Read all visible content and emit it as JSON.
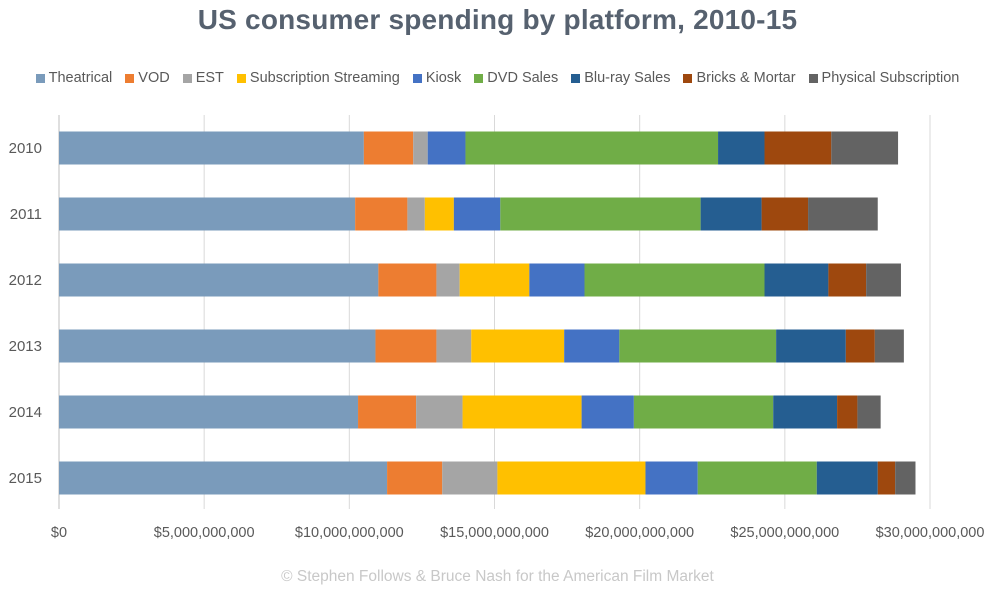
{
  "chart_data": {
    "type": "bar",
    "orientation": "horizontal",
    "stacked": true,
    "title": "US consumer spending by platform, 2010-15",
    "categories": [
      "2010",
      "2011",
      "2012",
      "2013",
      "2014",
      "2015"
    ],
    "xlim": [
      0,
      30000000000
    ],
    "x_ticks": [
      0,
      5000000000,
      10000000000,
      15000000000,
      20000000000,
      25000000000,
      30000000000
    ],
    "x_tick_labels": [
      "$0",
      "$5,000,000,000",
      "$10,000,000,000",
      "$15,000,000,000",
      "$20,000,000,000",
      "$25,000,000,000",
      "$30,000,000,000"
    ],
    "grid": true,
    "legend_position": "top",
    "series": [
      {
        "name": "Theatrical",
        "color": "#7a9bbb",
        "values": [
          10500000000,
          10200000000,
          11000000000,
          10900000000,
          10300000000,
          11300000000
        ]
      },
      {
        "name": "VOD",
        "color": "#ed7d31",
        "values": [
          1700000000,
          1800000000,
          2000000000,
          2100000000,
          2000000000,
          1900000000
        ]
      },
      {
        "name": "EST",
        "color": "#a5a5a5",
        "values": [
          500000000,
          600000000,
          800000000,
          1200000000,
          1600000000,
          1900000000
        ]
      },
      {
        "name": "Subscription Streaming",
        "color": "#ffc000",
        "values": [
          0,
          1000000000,
          2400000000,
          3200000000,
          4100000000,
          5100000000
        ]
      },
      {
        "name": "Kiosk",
        "color": "#4472c4",
        "values": [
          1300000000,
          1600000000,
          1900000000,
          1900000000,
          1800000000,
          1800000000
        ]
      },
      {
        "name": "DVD Sales",
        "color": "#70ad47",
        "values": [
          8700000000,
          6900000000,
          6200000000,
          5400000000,
          4800000000,
          4100000000
        ]
      },
      {
        "name": "Blu-ray Sales",
        "color": "#255e91",
        "values": [
          1600000000,
          2100000000,
          2200000000,
          2400000000,
          2200000000,
          2100000000
        ]
      },
      {
        "name": "Bricks & Mortar",
        "color": "#9e480e",
        "values": [
          2300000000,
          1600000000,
          1300000000,
          1000000000,
          700000000,
          600000000
        ]
      },
      {
        "name": "Physical Subscription",
        "color": "#636363",
        "values": [
          2300000000,
          2400000000,
          1200000000,
          1000000000,
          800000000,
          700000000
        ]
      }
    ]
  },
  "credit": "© Stephen Follows & Bruce Nash for the American Film Market"
}
